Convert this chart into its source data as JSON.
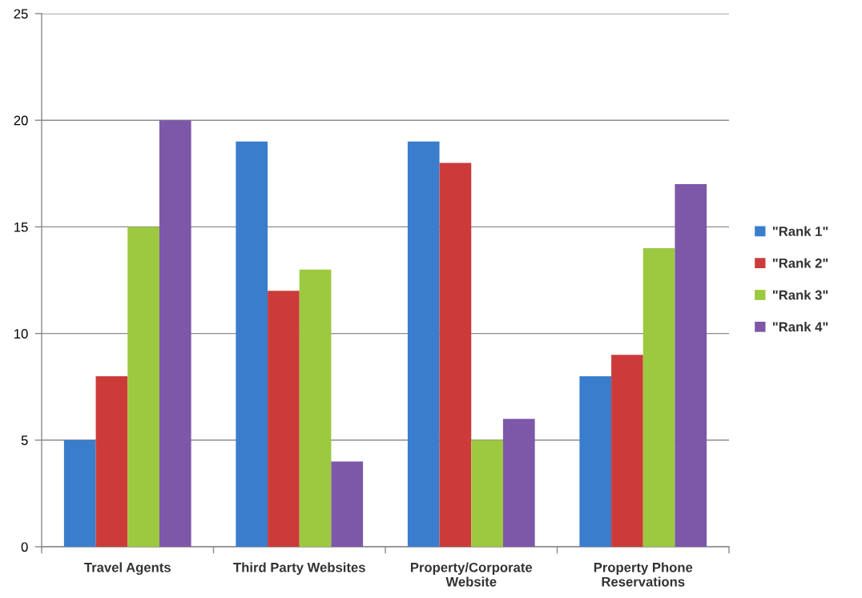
{
  "chart_data": {
    "type": "bar",
    "categories": [
      "Travel Agents",
      "Third Party Websites",
      "Property/Corporate\nWebsite",
      "Property Phone\nReservations"
    ],
    "series": [
      {
        "name": "\"Rank 1\"",
        "color": "#3a7dcc",
        "values": [
          5,
          19,
          19,
          8
        ]
      },
      {
        "name": "\"Rank 2\"",
        "color": "#cc3b3a",
        "values": [
          8,
          12,
          18,
          9
        ]
      },
      {
        "name": "\"Rank 3\"",
        "color": "#9cc93f",
        "values": [
          15,
          13,
          5,
          14
        ]
      },
      {
        "name": "\"Rank 4\"",
        "color": "#7d57a8",
        "values": [
          20,
          4,
          6,
          17
        ]
      }
    ],
    "ylim": [
      0,
      25
    ],
    "yticks": [
      0,
      5,
      10,
      15,
      20,
      25
    ],
    "grid": "y",
    "legend": "right"
  }
}
